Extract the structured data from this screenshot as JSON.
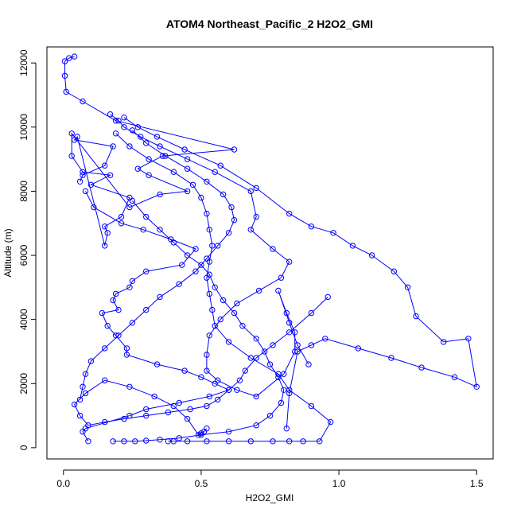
{
  "chart_data": {
    "type": "line",
    "title": "ATOM4 Northeast_Pacific_2 H2O2_GMI",
    "xlabel": "H2O2_GMI",
    "ylabel": "Altitude (m)",
    "xlim": [
      -0.06,
      1.56
    ],
    "ylim": [
      -350,
      12500
    ],
    "xticks": [
      0.0,
      0.5,
      1.0,
      1.5
    ],
    "xtick_labels": [
      "0.0",
      "0.5",
      "1.0",
      "1.5"
    ],
    "yticks": [
      0,
      2000,
      4000,
      6000,
      8000,
      10000,
      12000
    ],
    "ytick_labels": [
      "0",
      "2000",
      "4000",
      "6000",
      "8000",
      "10000",
      "12000"
    ],
    "grid": false,
    "line_color": "#0000ff",
    "marker": "open-circle",
    "series": [
      {
        "x": [
          0.04,
          0.02,
          0.005,
          0.005,
          0.01,
          0.07,
          0.19,
          0.62,
          0.36,
          0.27,
          0.31,
          0.45,
          0.35,
          0.24,
          0.03,
          0.03,
          0.07,
          0.17,
          0.1,
          0.24,
          0.21,
          0.15,
          0.16,
          0.15,
          0.05,
          0.04,
          0.18,
          0.15,
          0.07,
          0.06
        ],
        "y": [
          12200,
          12150,
          12050,
          11600,
          11100,
          10800,
          10200,
          9300,
          9100,
          8700,
          8500,
          8000,
          7900,
          7500,
          9800,
          9100,
          8600,
          8500,
          8200,
          7800,
          7200,
          6900,
          6700,
          6300,
          9700,
          9600,
          9400,
          8800,
          8500,
          8300
        ]
      },
      {
        "x": [
          0.08,
          0.11,
          0.21,
          0.29,
          0.39,
          0.48,
          0.43,
          0.3,
          0.25,
          0.24,
          0.19,
          0.18,
          0.2,
          0.14,
          0.16,
          0.19,
          0.23,
          0.23,
          0.34,
          0.44,
          0.5,
          0.55,
          0.6,
          0.53,
          0.42,
          0.3,
          0.24,
          0.08,
          0.07,
          0.09
        ],
        "y": [
          8000,
          7500,
          7000,
          6800,
          6500,
          6200,
          5700,
          5500,
          5200,
          5000,
          4800,
          4600,
          4300,
          4200,
          3800,
          3500,
          3100,
          2900,
          2600,
          2400,
          2200,
          2000,
          1800,
          1600,
          1400,
          1200,
          1000,
          600,
          500,
          200
        ]
      },
      {
        "x": [
          0.17,
          0.2,
          0.22,
          0.28,
          0.35,
          0.45,
          0.55,
          0.68,
          0.7,
          0.68,
          0.76,
          0.82,
          0.79,
          0.71,
          0.63,
          0.57,
          0.53,
          0.52,
          0.52,
          0.56,
          0.63,
          0.7,
          0.8,
          0.84,
          0.84,
          0.81,
          0.78,
          0.82,
          0.85,
          0.89
        ],
        "y": [
          10400,
          10200,
          10000,
          9700,
          9400,
          9000,
          8600,
          8000,
          7200,
          6800,
          6200,
          5800,
          5300,
          4900,
          4500,
          4000,
          3500,
          2900,
          2400,
          2100,
          1800,
          1600,
          2300,
          3000,
          3600,
          4200,
          4900,
          3900,
          3200,
          2600
        ]
      },
      {
        "x": [
          0.22,
          0.27,
          0.34,
          0.44,
          0.57,
          0.7,
          0.82,
          0.9,
          0.98,
          1.05,
          1.12,
          1.2,
          1.25,
          1.28,
          1.38,
          1.47,
          1.5,
          1.42,
          1.3,
          1.19,
          1.07,
          0.95,
          0.9,
          0.85,
          0.82,
          0.81
        ],
        "y": [
          10300,
          10000,
          9700,
          9300,
          8800,
          8100,
          7300,
          6900,
          6700,
          6300,
          6000,
          5500,
          5000,
          4100,
          3300,
          3400,
          1900,
          2200,
          2500,
          2800,
          3100,
          3400,
          3200,
          3000,
          1700,
          600
        ]
      },
      {
        "x": [
          0.25,
          0.3,
          0.37,
          0.45,
          0.52,
          0.58,
          0.61,
          0.62,
          0.6,
          0.56,
          0.52,
          0.48,
          0.42,
          0.35,
          0.3,
          0.25,
          0.2,
          0.15,
          0.1,
          0.08,
          0.07,
          0.06
        ],
        "y": [
          9900,
          9500,
          9100,
          8700,
          8300,
          7900,
          7500,
          7100,
          6700,
          6300,
          5900,
          5500,
          5100,
          4700,
          4300,
          3900,
          3500,
          3100,
          2700,
          2300,
          1900,
          1500
        ]
      },
      {
        "x": [
          0.19,
          0.24,
          0.31,
          0.4,
          0.47,
          0.5,
          0.52,
          0.53,
          0.54,
          0.53,
          0.52,
          0.53,
          0.54,
          0.55,
          0.6,
          0.68,
          0.78,
          0.82,
          0.9,
          0.97,
          0.93,
          0.87,
          0.82,
          0.76,
          0.68,
          0.6,
          0.52,
          0.45,
          0.4,
          0.38
        ],
        "y": [
          9800,
          9400,
          9000,
          8600,
          8200,
          7800,
          7300,
          6800,
          6300,
          5800,
          5300,
          4800,
          4300,
          3800,
          3300,
          2800,
          2300,
          1800,
          1300,
          800,
          200,
          200,
          200,
          200,
          200,
          200,
          200,
          200,
          200,
          200
        ]
      },
      {
        "x": [
          0.52,
          0.51,
          0.5,
          0.49,
          0.45,
          0.4,
          0.33,
          0.24,
          0.15,
          0.08,
          0.04,
          0.06,
          0.09,
          0.15,
          0.22,
          0.3,
          0.38,
          0.46,
          0.52,
          0.56,
          0.6,
          0.64,
          0.66,
          0.7,
          0.76,
          0.82,
          0.9,
          0.96
        ],
        "y": [
          600,
          500,
          450,
          400,
          900,
          1300,
          1600,
          1900,
          2100,
          1700,
          1350,
          1000,
          700,
          800,
          900,
          1000,
          1100,
          1200,
          1300,
          1500,
          1800,
          2100,
          2400,
          2800,
          3200,
          3600,
          4200,
          4700
        ]
      },
      {
        "x": [
          0.25,
          0.3,
          0.35,
          0.4,
          0.45,
          0.5,
          0.53,
          0.55,
          0.58,
          0.62,
          0.65,
          0.7,
          0.73,
          0.75,
          0.78,
          0.8,
          0.79,
          0.75,
          0.7,
          0.6,
          0.5,
          0.42,
          0.35,
          0.3,
          0.26,
          0.22,
          0.18
        ],
        "y": [
          7700,
          7200,
          6800,
          6400,
          6000,
          5700,
          5400,
          5000,
          4600,
          4200,
          3800,
          3400,
          3000,
          2600,
          2200,
          1800,
          1400,
          1000,
          700,
          500,
          400,
          300,
          250,
          220,
          200,
          200,
          200
        ]
      }
    ]
  }
}
